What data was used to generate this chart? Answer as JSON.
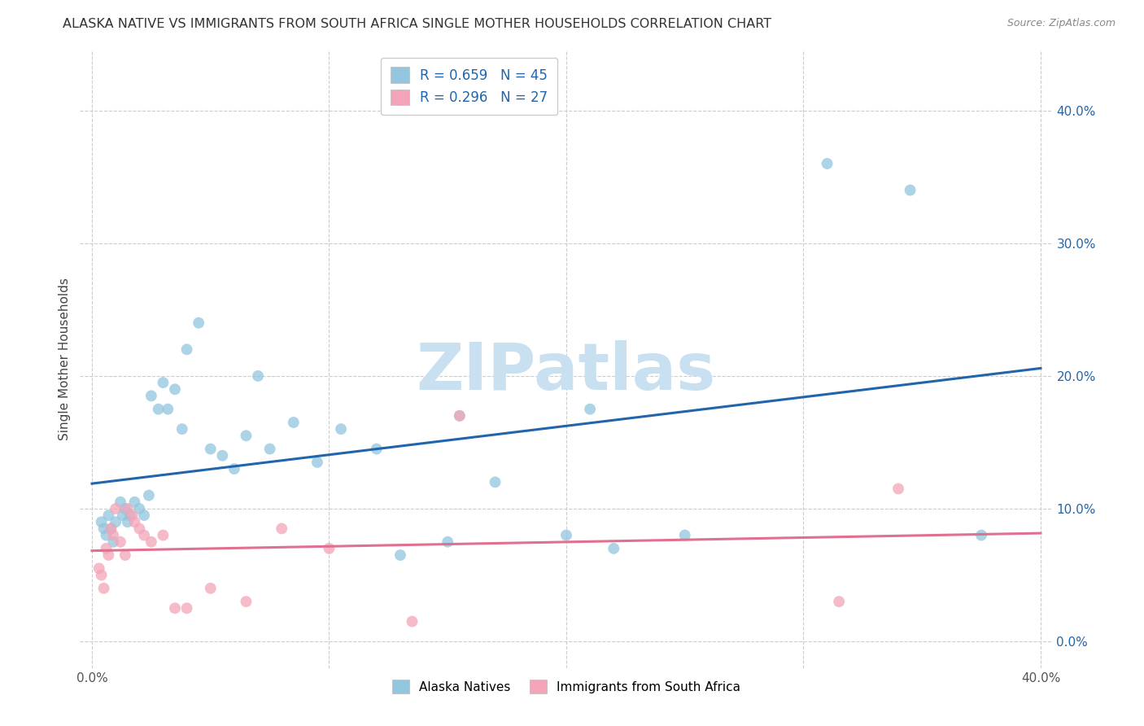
{
  "title": "ALASKA NATIVE VS IMMIGRANTS FROM SOUTH AFRICA SINGLE MOTHER HOUSEHOLDS CORRELATION CHART",
  "source": "Source: ZipAtlas.com",
  "ylabel": "Single Mother Households",
  "right_ytick_vals": [
    0.0,
    0.1,
    0.2,
    0.3,
    0.4
  ],
  "xtick_vals": [
    0.0,
    0.1,
    0.2,
    0.3,
    0.4
  ],
  "xlim": [
    -0.005,
    0.405
  ],
  "ylim": [
    -0.02,
    0.445
  ],
  "alaska_color": "#92c5de",
  "southafrica_color": "#f4a4b8",
  "alaska_line_color": "#2166ac",
  "southafrica_line_color": "#e07090",
  "alaska_x": [
    0.004,
    0.005,
    0.006,
    0.007,
    0.008,
    0.009,
    0.01,
    0.012,
    0.013,
    0.014,
    0.015,
    0.016,
    0.018,
    0.02,
    0.022,
    0.024,
    0.025,
    0.028,
    0.03,
    0.032,
    0.035,
    0.038,
    0.04,
    0.045,
    0.05,
    0.055,
    0.06,
    0.065,
    0.07,
    0.075,
    0.085,
    0.095,
    0.105,
    0.12,
    0.13,
    0.15,
    0.155,
    0.17,
    0.2,
    0.21,
    0.22,
    0.25,
    0.31,
    0.345,
    0.375
  ],
  "alaska_y": [
    0.09,
    0.085,
    0.08,
    0.095,
    0.085,
    0.075,
    0.09,
    0.105,
    0.095,
    0.1,
    0.09,
    0.095,
    0.105,
    0.1,
    0.095,
    0.11,
    0.185,
    0.175,
    0.195,
    0.175,
    0.19,
    0.16,
    0.22,
    0.24,
    0.145,
    0.14,
    0.13,
    0.155,
    0.2,
    0.145,
    0.165,
    0.135,
    0.16,
    0.145,
    0.065,
    0.075,
    0.17,
    0.12,
    0.08,
    0.175,
    0.07,
    0.08,
    0.36,
    0.34,
    0.08
  ],
  "sa_x": [
    0.003,
    0.004,
    0.005,
    0.006,
    0.007,
    0.008,
    0.009,
    0.01,
    0.012,
    0.014,
    0.015,
    0.017,
    0.018,
    0.02,
    0.022,
    0.025,
    0.03,
    0.035,
    0.04,
    0.05,
    0.065,
    0.08,
    0.1,
    0.135,
    0.155,
    0.315,
    0.34
  ],
  "sa_y": [
    0.055,
    0.05,
    0.04,
    0.07,
    0.065,
    0.085,
    0.08,
    0.1,
    0.075,
    0.065,
    0.1,
    0.095,
    0.09,
    0.085,
    0.08,
    0.075,
    0.08,
    0.025,
    0.025,
    0.04,
    0.03,
    0.085,
    0.07,
    0.015,
    0.17,
    0.03,
    0.115
  ],
  "background_color": "#ffffff",
  "grid_color": "#cccccc",
  "watermark_text": "ZIPatlas",
  "watermark_color": "#c8e0f0",
  "legend_alaska_label": "R = 0.659   N = 45",
  "legend_sa_label": "R = 0.296   N = 27",
  "legend_text_color": "#2166ac",
  "bottom_legend_alaska": "Alaska Natives",
  "bottom_legend_sa": "Immigrants from South Africa"
}
